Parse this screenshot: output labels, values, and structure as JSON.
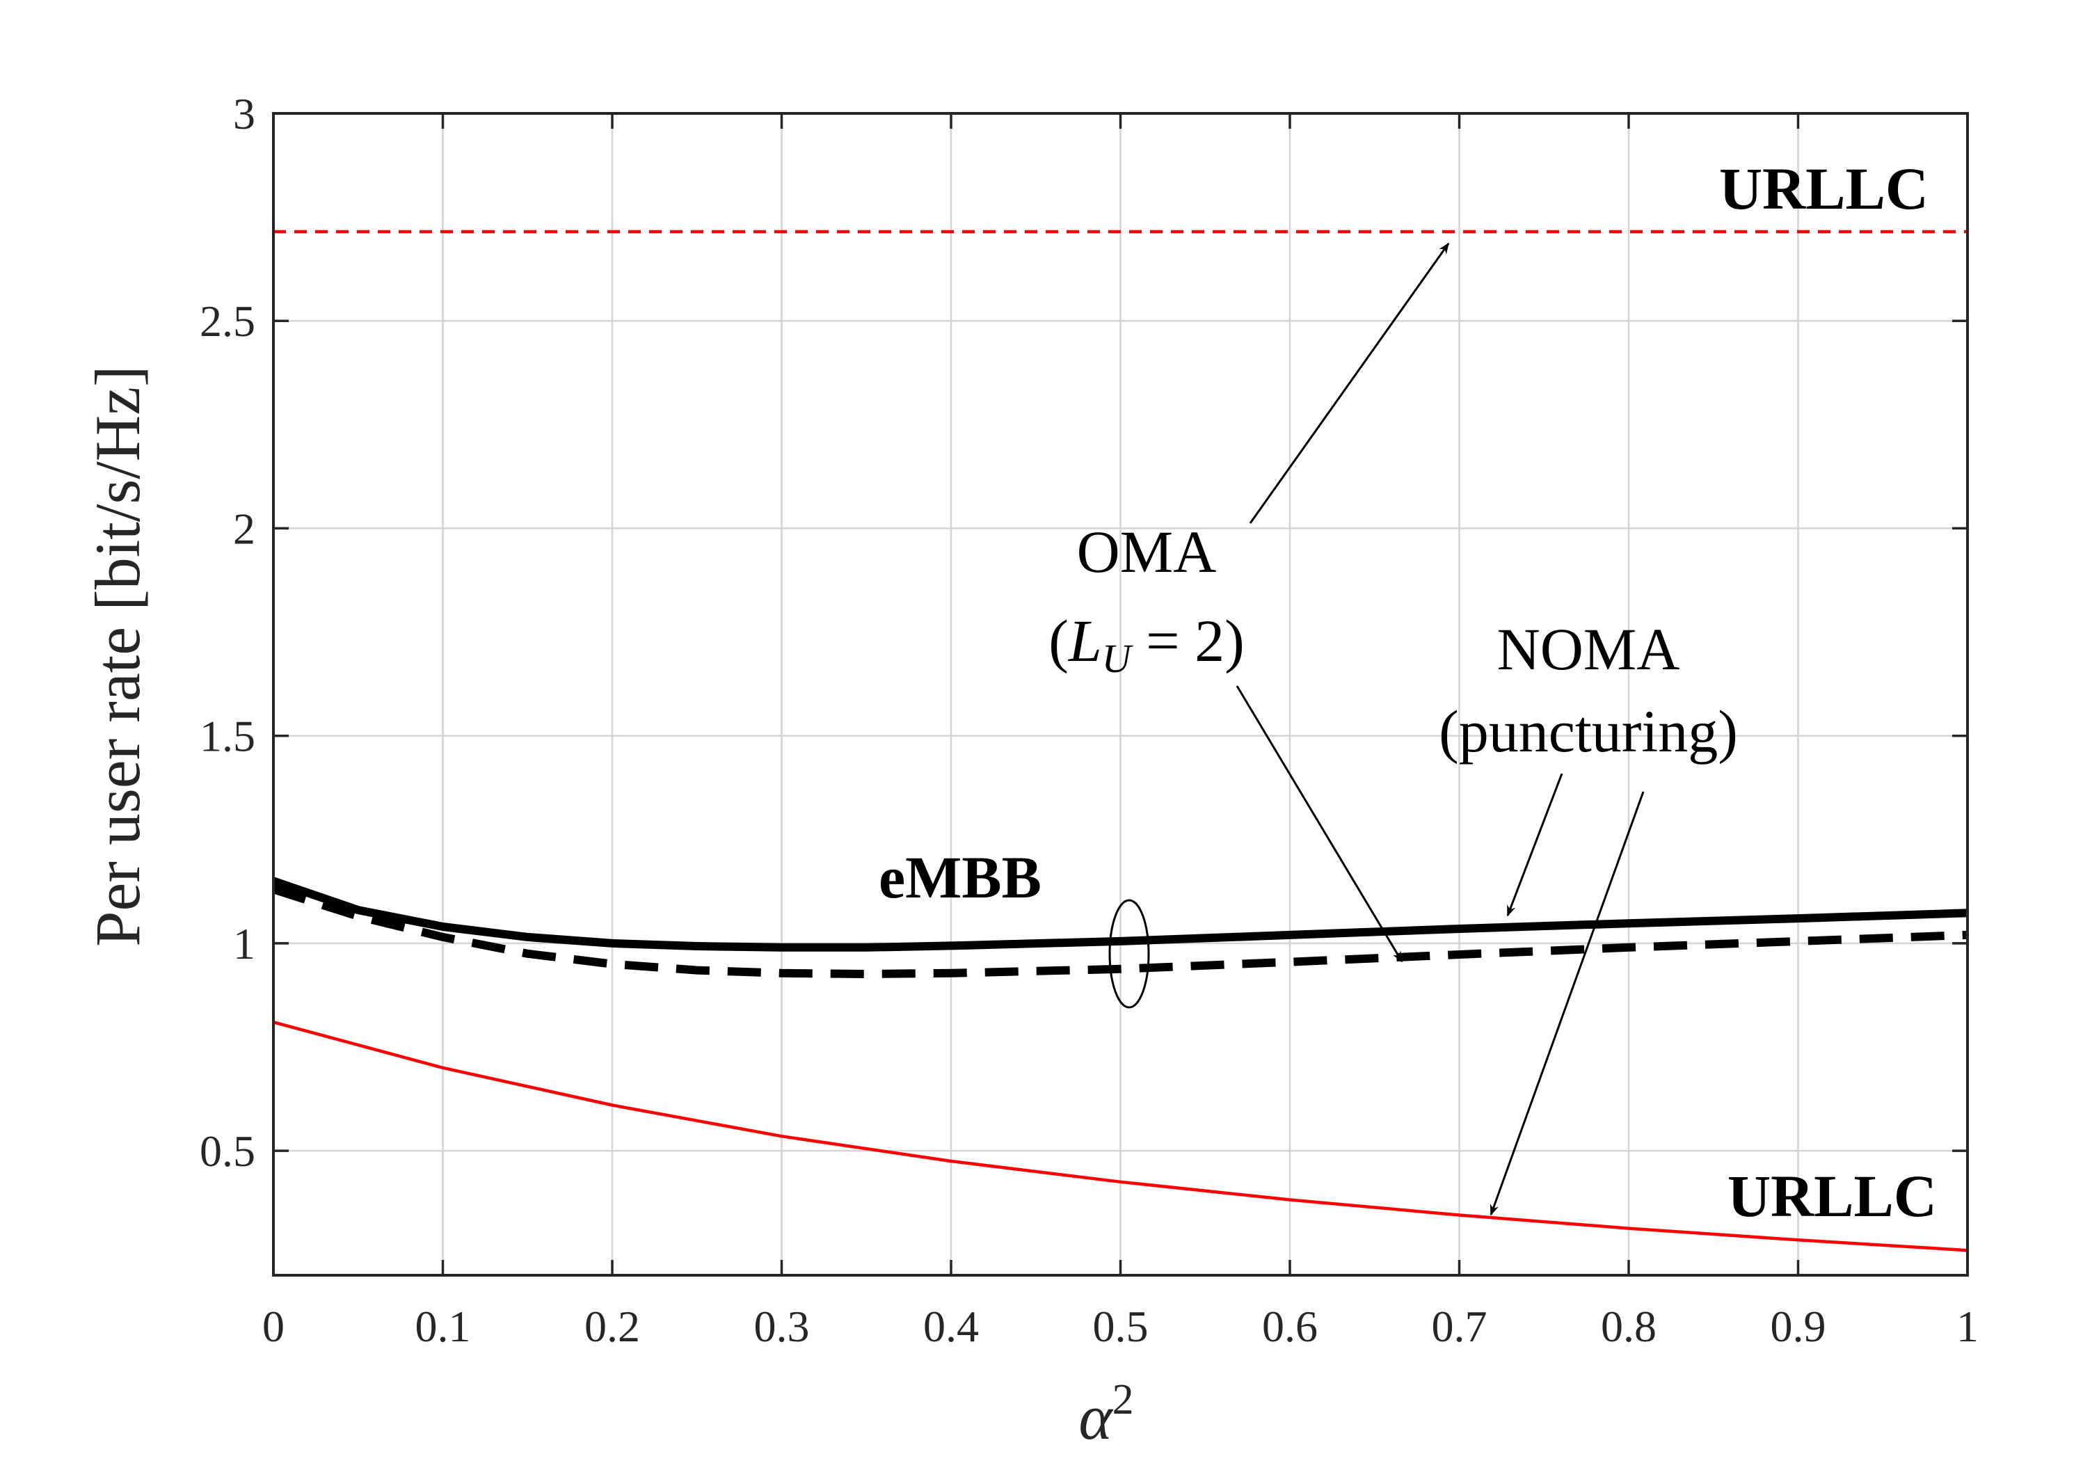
{
  "chart_data": {
    "type": "line",
    "title": "",
    "xlabel": "α",
    "xlabel_superscript": "2",
    "ylabel": "Per user rate [bit/s/Hz]",
    "xlim": [
      0,
      1
    ],
    "ylim": [
      0.2,
      3
    ],
    "grid": true,
    "x_ticks": [
      0,
      0.1,
      0.2,
      0.3,
      0.4,
      0.5,
      0.6,
      0.7,
      0.8,
      0.9,
      1
    ],
    "x_tick_labels": [
      "0",
      "0.1",
      "0.2",
      "0.3",
      "0.4",
      "0.5",
      "0.6",
      "0.7",
      "0.8",
      "0.9",
      "1"
    ],
    "y_ticks": [
      0.5,
      1,
      1.5,
      2,
      2.5,
      3
    ],
    "y_tick_labels": [
      "0.5",
      "1",
      "1.5",
      "2",
      "2.5",
      "3"
    ],
    "series": [
      {
        "name": "eMBB NOMA (puncturing)",
        "style": "solid",
        "color": "#000000",
        "x": [
          0,
          0.05,
          0.1,
          0.15,
          0.2,
          0.25,
          0.3,
          0.35,
          0.4,
          0.5,
          0.6,
          0.7,
          0.8,
          0.9,
          1.0
        ],
        "values": [
          1.15,
          1.08,
          1.04,
          1.015,
          1.0,
          0.993,
          0.99,
          0.99,
          0.994,
          1.005,
          1.02,
          1.035,
          1.048,
          1.06,
          1.073
        ]
      },
      {
        "name": "eMBB OMA (L_U = 2)",
        "style": "dashed",
        "color": "#000000",
        "x": [
          0,
          0.05,
          0.1,
          0.15,
          0.2,
          0.25,
          0.3,
          0.35,
          0.4,
          0.5,
          0.6,
          0.7,
          0.8,
          0.9,
          1.0
        ],
        "values": [
          1.13,
          1.065,
          1.015,
          0.975,
          0.95,
          0.935,
          0.928,
          0.926,
          0.928,
          0.938,
          0.955,
          0.973,
          0.99,
          1.005,
          1.02
        ]
      },
      {
        "name": "URLLC NOMA (puncturing)",
        "style": "solid",
        "color": "#ff0000",
        "x": [
          0,
          0.1,
          0.2,
          0.3,
          0.4,
          0.5,
          0.6,
          0.7,
          0.8,
          0.9,
          1.0
        ],
        "values": [
          0.81,
          0.7,
          0.61,
          0.535,
          0.475,
          0.425,
          0.382,
          0.345,
          0.313,
          0.285,
          0.26
        ]
      },
      {
        "name": "URLLC OMA (L_U = 2)",
        "style": "dashed",
        "color": "#ff0000",
        "x": [
          0,
          1
        ],
        "values": [
          2.715,
          2.715
        ]
      }
    ],
    "annotations": {
      "urllc_top": "URLLC",
      "urllc_bottom": "URLLC",
      "embb": "eMBB",
      "oma_line1": "OMA",
      "oma_line2_open": "(",
      "oma_line2_L": "L",
      "oma_line2_sub": "U",
      "oma_line2_rest": " = 2)",
      "noma_line1": "NOMA",
      "noma_line2": "(puncturing)"
    }
  }
}
